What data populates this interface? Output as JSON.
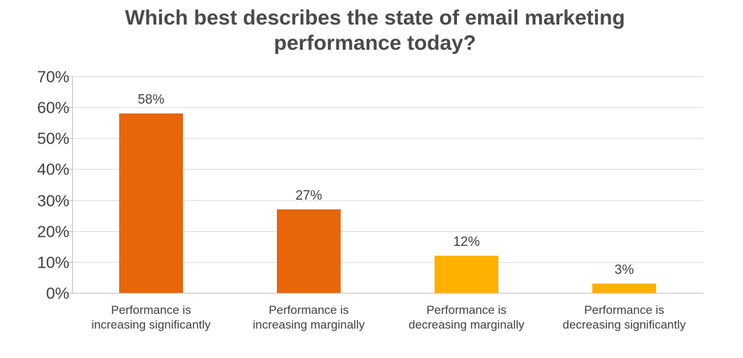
{
  "chart_data": {
    "type": "bar",
    "title": "Which best describes the state of email marketing performance today?",
    "title_lines": [
      "Which best describes the state of email marketing",
      "performance today?"
    ],
    "categories": [
      [
        "Performance is",
        "increasing significantly"
      ],
      [
        "Performance is",
        "increasing marginally"
      ],
      [
        "Performance is",
        "decreasing marginally"
      ],
      [
        "Performance is",
        "decreasing significantly"
      ]
    ],
    "values": [
      58,
      27,
      12,
      3
    ],
    "value_labels": [
      "58%",
      "27%",
      "12%",
      "3%"
    ],
    "bar_colors": [
      "#e8650a",
      "#e8650a",
      "#ffb000",
      "#ffb000"
    ],
    "ylim": [
      0,
      70
    ],
    "yticks": [
      0,
      10,
      20,
      30,
      40,
      50,
      60,
      70
    ],
    "ytick_labels": [
      "0%",
      "10%",
      "20%",
      "30%",
      "40%",
      "50%",
      "60%",
      "70%"
    ],
    "xlabel": "",
    "ylabel": "",
    "grid": true,
    "legend": "none"
  },
  "colors": {
    "grid": "#dcdcdc",
    "axis": "#bfbfbf",
    "text": "#404040",
    "title": "#4a4a4a"
  }
}
